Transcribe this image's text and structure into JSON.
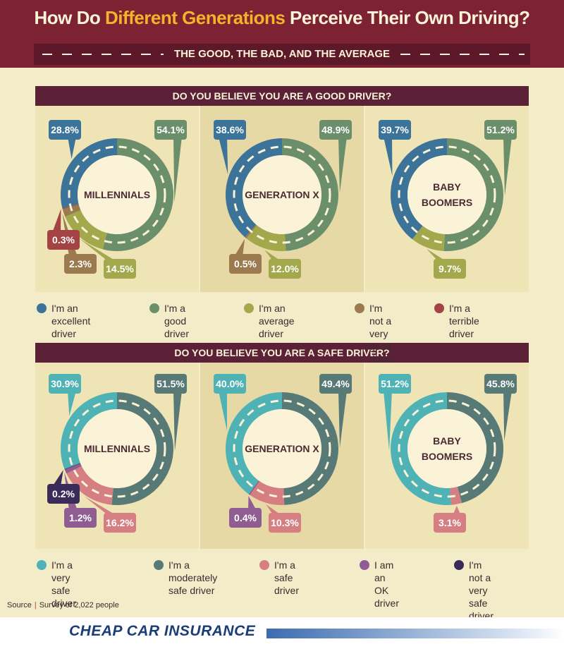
{
  "header": {
    "title_pre": "How Do ",
    "title_highlight": "Different Generations",
    "title_post": " Perceive Their Own Driving?",
    "subtitle": "THE GOOD, THE BAD, AND THE AVERAGE"
  },
  "colors": {
    "title_bar": "#7d2233",
    "highlight": "#f5b32d",
    "background": "#f3ecc9"
  },
  "chart_data": [
    {
      "type": "donut",
      "title": "DO YOU BELIEVE YOU ARE A GOOD DRIVER?",
      "categories": [
        "I'm an excellent driver",
        "I'm a good driver",
        "I'm an average driver",
        "I'm not a very good driver",
        "I'm a terrible driver"
      ],
      "colors": [
        "#3c7399",
        "#6c8f6b",
        "#a2a84b",
        "#9a7a4e",
        "#a44343"
      ],
      "groups": [
        {
          "name": "MILLENNIALS",
          "values": [
            28.8,
            54.1,
            14.5,
            2.3,
            0.3
          ],
          "labels": [
            "28.8%",
            "54.1%",
            "14.5%",
            "2.3%",
            "0.3%"
          ]
        },
        {
          "name": "GENERATION X",
          "values": [
            38.6,
            48.9,
            12.0,
            0.5,
            0
          ],
          "labels": [
            "38.6%",
            "48.9%",
            "12.0%",
            "0.5%",
            ""
          ]
        },
        {
          "name": "BABY BOOMERS",
          "values": [
            39.7,
            51.2,
            9.7,
            0,
            0
          ],
          "labels": [
            "39.7%",
            "51.2%",
            "9.7%",
            "",
            ""
          ]
        }
      ]
    },
    {
      "type": "donut",
      "title": "DO YOU BELIEVE YOU ARE A SAFE DRIVER?",
      "categories": [
        "I'm a very safe driver",
        "I'm a moderately safe driver",
        "I'm a safe driver",
        "I am an OK driver",
        "I'm not a very safe driver"
      ],
      "colors": [
        "#4fb3b5",
        "#577a76",
        "#d57f83",
        "#8f5d92",
        "#3b2b5b"
      ],
      "groups": [
        {
          "name": "MILLENNIALS",
          "values": [
            30.9,
            51.5,
            16.2,
            1.2,
            0.2
          ],
          "labels": [
            "30.9%",
            "51.5%",
            "16.2%",
            "1.2%",
            "0.2%"
          ]
        },
        {
          "name": "GENERATION X",
          "values": [
            40.0,
            49.4,
            10.3,
            0.4,
            0
          ],
          "labels": [
            "40.0%",
            "49.4%",
            "10.3%",
            "0.4%",
            ""
          ]
        },
        {
          "name": "BABY BOOMERS",
          "values": [
            51.2,
            45.8,
            3.1,
            0,
            0
          ],
          "labels": [
            "51.2%",
            "45.8%",
            "3.1%",
            "",
            ""
          ]
        }
      ]
    }
  ],
  "legend1": [
    {
      "text": "I'm an excellent driver",
      "text2": ""
    },
    {
      "text": "I'm a good driver",
      "text2": ""
    },
    {
      "text": "I'm an average driver",
      "text2": ""
    },
    {
      "text": "I'm not a very",
      "text2": "good driver"
    },
    {
      "text": "I'm a terrible driver",
      "text2": ""
    }
  ],
  "legend2": [
    {
      "text": "I'm a very safe driver",
      "text2": ""
    },
    {
      "text": "I'm a moderately",
      "text2": "safe driver"
    },
    {
      "text": "I'm a safe driver",
      "text2": ""
    },
    {
      "text": "I am an OK driver",
      "text2": ""
    },
    {
      "text": "I'm not a very",
      "text2": "safe driver"
    }
  ],
  "source": {
    "label": "Source",
    "text": "Survey of 2,022 people"
  },
  "footer": {
    "logo": "CHEAP CAR INSURANCE"
  }
}
